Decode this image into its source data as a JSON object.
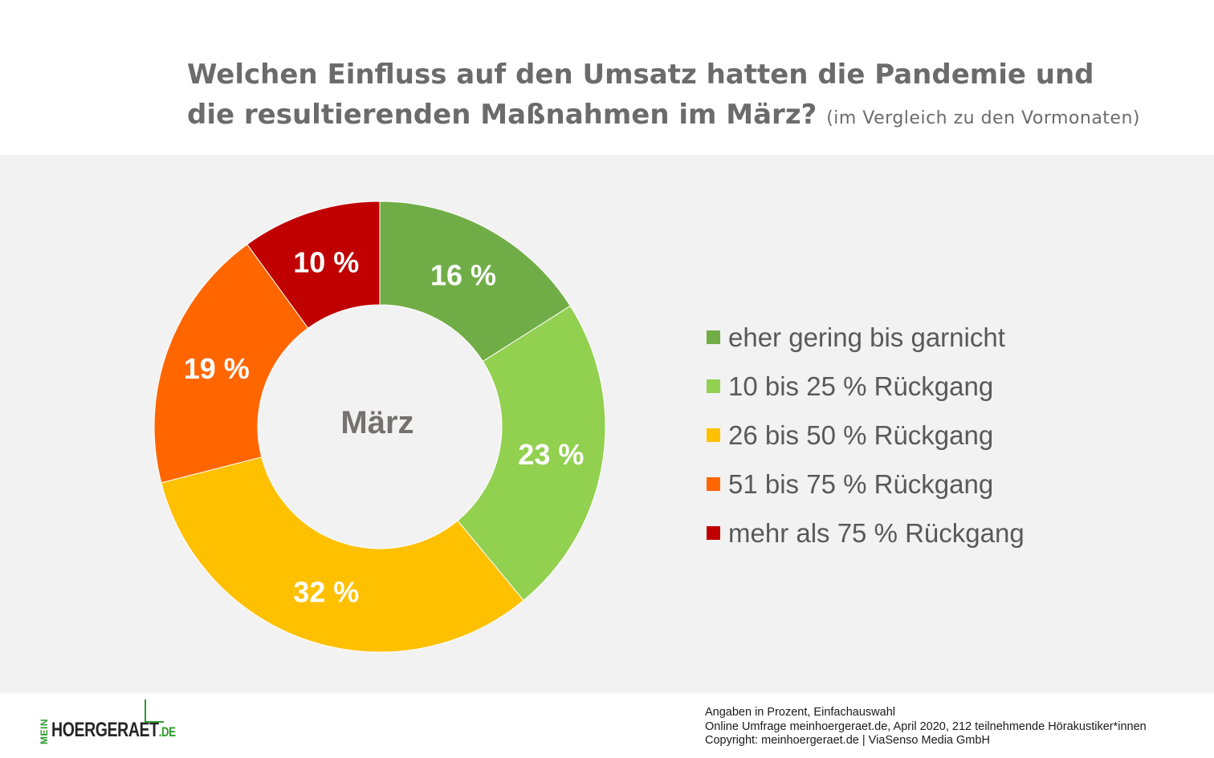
{
  "title": {
    "line1": "Welchen Einfluss auf den Umsatz hatten die Pandemie und",
    "line2": "die resultierenden Maßnahmen im März?",
    "subtitle": "(im Vergleich zu den Vormonaten)"
  },
  "chart_data": {
    "type": "pie",
    "donut": true,
    "center_label": "März",
    "categories": [
      "eher gering bis garnicht",
      "10 bis 25 % Rückgang",
      "26 bis 50 % Rückgang",
      "51 bis 75 % Rückgang",
      "mehr als 75 % Rückgang"
    ],
    "values": [
      16,
      23,
      32,
      19,
      10
    ],
    "labels": [
      "16 %",
      "23 %",
      "32 %",
      "19 %",
      "10 %"
    ],
    "colors": [
      "#70ad47",
      "#92d050",
      "#ffc000",
      "#ff6600",
      "#c00000"
    ],
    "legend_position": "right"
  },
  "footer": {
    "line1": "Angaben in Prozent,  Einfachauswahl",
    "line2": "Online Umfrage meinhoergeraet.de, April 2020, 212 teilnehmende  Hörakustiker*innen",
    "line3": "Copyright: meinhoergeraet.de | ViaSenso Media GmbH"
  },
  "logo": {
    "prefix": "MEIN",
    "name": "HOERGERAET",
    "suffix": ".DE"
  }
}
